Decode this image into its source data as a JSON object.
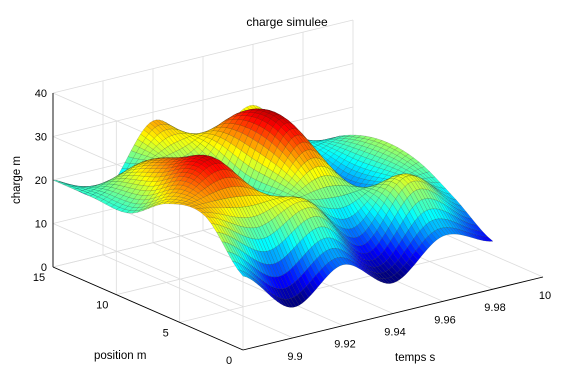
{
  "chart_data": {
    "type": "surface",
    "title": "charge simulee",
    "xlabel": "temps s",
    "ylabel": "position m",
    "zlabel": "charge m",
    "x_ticks": [
      "9.9",
      "9.92",
      "9.94",
      "9.96",
      "9.98",
      "10"
    ],
    "y_ticks": [
      "0",
      "5",
      "10",
      "15"
    ],
    "z_ticks": [
      "0",
      "10",
      "20",
      "30",
      "40"
    ],
    "xlim": [
      9.88,
      10
    ],
    "ylim": [
      0,
      15
    ],
    "zlim": [
      0,
      40
    ],
    "colormap": "jet",
    "grid": true,
    "surface_profiles": [
      {
        "x": 9.88,
        "position": [
          0,
          3,
          6,
          9,
          12,
          15
        ],
        "charge": [
          17,
          27,
          26,
          20,
          20,
          20
        ]
      },
      {
        "x": 9.9,
        "position": [
          0,
          3,
          6,
          9,
          12,
          15
        ],
        "charge": [
          7,
          22,
          33,
          30,
          25,
          14
        ]
      },
      {
        "x": 9.92,
        "position": [
          0,
          3,
          6,
          9,
          12,
          15
        ],
        "charge": [
          14,
          25,
          20,
          16,
          22,
          28
        ]
      },
      {
        "x": 9.94,
        "position": [
          0,
          3,
          6,
          9,
          12,
          15
        ],
        "charge": [
          7,
          14,
          27,
          34,
          31,
          19
        ]
      },
      {
        "x": 9.96,
        "position": [
          0,
          3,
          6,
          9,
          12,
          15
        ],
        "charge": [
          15,
          25,
          17,
          14,
          19,
          26
        ]
      },
      {
        "x": 9.98,
        "position": [
          0,
          3,
          6,
          9,
          12,
          15
        ],
        "charge": [
          11,
          17,
          22,
          23,
          20,
          13
        ]
      }
    ]
  }
}
